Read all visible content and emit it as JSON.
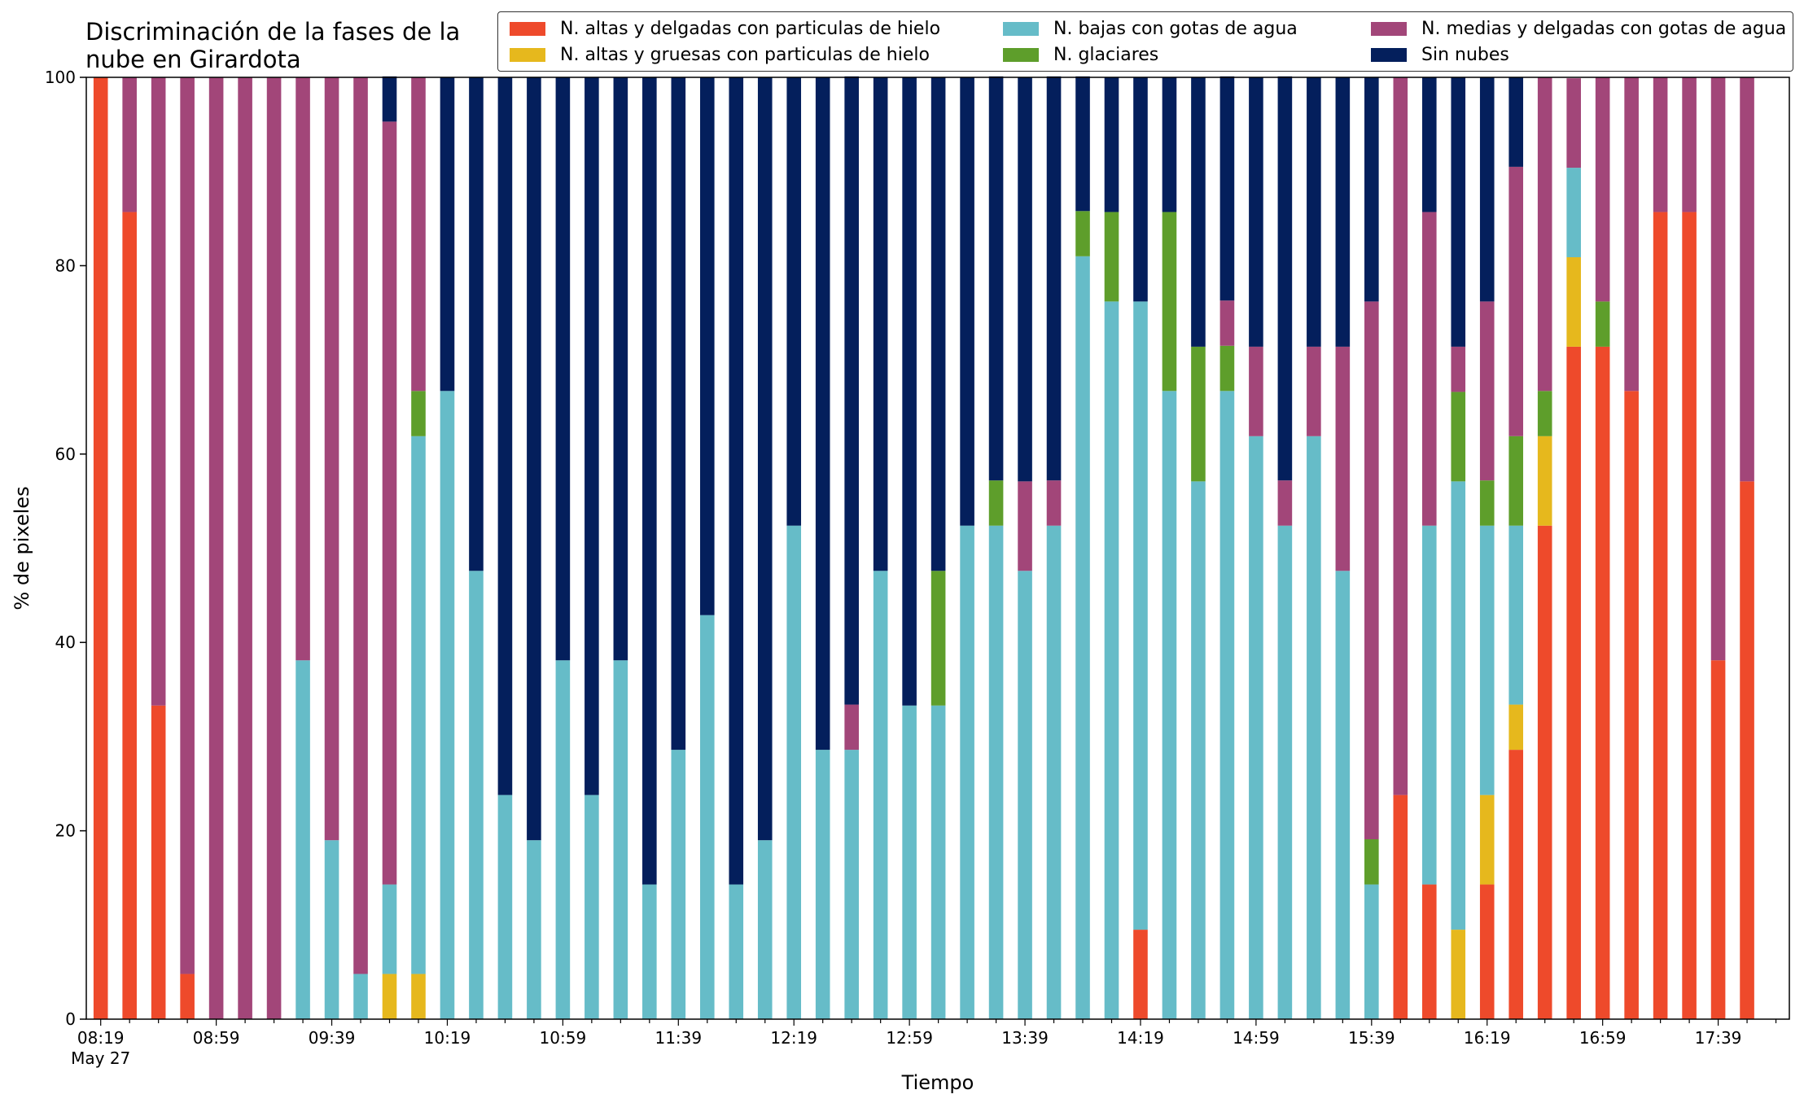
{
  "chart_data": {
    "type": "bar",
    "stacked": true,
    "title": "Discriminación de la fases de la nube en Girardota",
    "title_lines": [
      "Discriminación de la fases de la",
      "nube en Girardota"
    ],
    "xlabel": "Tiempo",
    "ylabel": "% de pixeles",
    "ylim": [
      0,
      100
    ],
    "yticks": [
      0,
      20,
      40,
      60,
      80,
      100
    ],
    "xtick_labels": [
      "08:19",
      "08:59",
      "09:39",
      "10:19",
      "10:59",
      "11:39",
      "12:19",
      "12:59",
      "13:39",
      "14:19",
      "14:59",
      "15:39",
      "16:19",
      "16:59",
      "17:39"
    ],
    "xtick_sublabel": "May 27",
    "legend_position": "top-right",
    "grid": false,
    "categories": [
      "08:19",
      "08:29",
      "08:39",
      "08:49",
      "08:59",
      "09:09",
      "09:19",
      "09:29",
      "09:39",
      "09:49",
      "09:59",
      "10:09",
      "10:19",
      "10:29",
      "10:39",
      "10:49",
      "10:59",
      "11:09",
      "11:19",
      "11:29",
      "11:39",
      "11:49",
      "11:59",
      "12:09",
      "12:19",
      "12:29",
      "12:39",
      "12:49",
      "12:59",
      "13:09",
      "13:19",
      "13:29",
      "13:39",
      "13:49",
      "13:59",
      "14:09",
      "14:19",
      "14:29",
      "14:39",
      "14:49",
      "14:59",
      "15:09",
      "15:19",
      "15:29",
      "15:39",
      "15:49",
      "15:59",
      "16:09",
      "16:19",
      "16:29",
      "16:39",
      "16:49",
      "16:59",
      "17:09",
      "17:19",
      "17:29",
      "17:39",
      "17:49"
    ],
    "series": [
      {
        "name": "N. altas y delgadas con particulas de hielo",
        "color": "#EE4A2B",
        "values": [
          100,
          85.7,
          33.3,
          4.8,
          0,
          0,
          0,
          0,
          0,
          0,
          0,
          0,
          0,
          0,
          0,
          0,
          0,
          0,
          0,
          0,
          0,
          0,
          0,
          0,
          0,
          0,
          0,
          0,
          0,
          0,
          0,
          0,
          0,
          0,
          0,
          0,
          9.5,
          0,
          0,
          0,
          0,
          0,
          0,
          0,
          0,
          23.8,
          14.3,
          0,
          14.3,
          28.6,
          52.4,
          71.4,
          71.4,
          66.7,
          85.7,
          85.7,
          38.1,
          57.1
        ]
      },
      {
        "name": "N. altas y gruesas con particulas de hielo",
        "color": "#E6B81D",
        "values": [
          0,
          0,
          0,
          0,
          0,
          0,
          0,
          0,
          0,
          0,
          4.8,
          4.8,
          0,
          0,
          0,
          0,
          0,
          0,
          0,
          0,
          0,
          0,
          0,
          0,
          0,
          0,
          0,
          0,
          0,
          0,
          0,
          0,
          0,
          0,
          0,
          0,
          0,
          0,
          0,
          0,
          0,
          0,
          0,
          0,
          0,
          0,
          0,
          9.5,
          9.5,
          4.8,
          9.5,
          9.5,
          0,
          0,
          0,
          0,
          0,
          0
        ]
      },
      {
        "name": "N. bajas con gotas de agua",
        "color": "#66BCC8",
        "values": [
          0,
          0,
          0,
          0,
          0,
          0,
          0,
          38.1,
          19,
          4.8,
          9.5,
          57.1,
          66.7,
          47.6,
          23.8,
          19,
          38.1,
          23.8,
          38.1,
          14.3,
          28.6,
          42.9,
          14.3,
          19,
          52.4,
          28.6,
          28.6,
          47.6,
          33.3,
          33.3,
          52.4,
          52.4,
          47.6,
          52.4,
          81,
          76.2,
          66.7,
          66.7,
          57.1,
          66.7,
          61.9,
          52.4,
          61.9,
          47.6,
          14.3,
          0,
          38.1,
          47.6,
          28.6,
          19,
          0,
          9.5,
          0,
          0,
          0,
          0,
          0,
          0
        ]
      },
      {
        "name": "N. glaciares",
        "color": "#5E9E2B",
        "values": [
          0,
          0,
          0,
          0,
          0,
          0,
          0,
          0,
          0,
          0,
          0,
          4.8,
          0,
          0,
          0,
          0,
          0,
          0,
          0,
          0,
          0,
          0,
          0,
          0,
          0,
          0,
          0,
          0,
          0,
          14.3,
          0,
          4.8,
          0,
          0,
          4.8,
          9.5,
          0,
          19,
          14.3,
          4.8,
          0,
          0,
          0,
          0,
          4.8,
          0,
          0,
          9.5,
          4.8,
          9.5,
          4.8,
          0,
          4.8,
          0,
          0,
          0,
          0,
          0
        ]
      },
      {
        "name": "N. medias y delgadas con gotas de agua",
        "color": "#A24679",
        "values": [
          0,
          14.3,
          66.7,
          95.2,
          100,
          100,
          100,
          61.9,
          81,
          95.2,
          81,
          33.3,
          0,
          0,
          0,
          0,
          0,
          0,
          0,
          0,
          0,
          0,
          0,
          0,
          0,
          0,
          4.8,
          0,
          0,
          0,
          0,
          0,
          9.5,
          4.8,
          0,
          0,
          0,
          0,
          0,
          4.8,
          9.5,
          4.8,
          9.5,
          23.8,
          57.1,
          76.2,
          33.3,
          4.8,
          19,
          28.6,
          33.3,
          9.5,
          23.8,
          33.3,
          14.3,
          14.3,
          61.9,
          42.9
        ]
      },
      {
        "name": "Sin nubes",
        "color": "#041F5C",
        "values": [
          0,
          0,
          0,
          0,
          0,
          0,
          0,
          0,
          0,
          0,
          4.8,
          0,
          33.3,
          52.4,
          76.2,
          81,
          61.9,
          76.2,
          61.9,
          85.7,
          71.4,
          57.1,
          85.7,
          81,
          47.6,
          71.4,
          66.7,
          52.4,
          66.7,
          52.4,
          47.6,
          42.9,
          42.9,
          42.9,
          14.3,
          14.3,
          23.8,
          14.3,
          28.6,
          23.8,
          28.6,
          42.9,
          28.6,
          28.6,
          23.8,
          0,
          14.3,
          28.6,
          23.8,
          9.5,
          0,
          0,
          0,
          0,
          0,
          0,
          0,
          0
        ]
      }
    ]
  }
}
